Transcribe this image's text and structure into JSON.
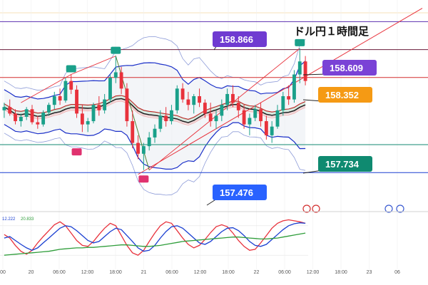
{
  "chart_data": {
    "type": "candlestick",
    "title": "ドル円１時間足",
    "time_labels": [
      "00",
      "20",
      "06:00",
      "12:00",
      "18:00",
      "21",
      "06:00",
      "12:00",
      "18:00",
      "22",
      "06:00",
      "12:00",
      "18:00",
      "23",
      "06"
    ],
    "price_ylim": [
      157.15,
      159.0
    ],
    "levels": [
      {
        "label": "158.866",
        "value": 158.866,
        "color": "#7b3fd6",
        "bg": "#6f3bd1",
        "line": "#5b2fb0"
      },
      {
        "label": "158.609",
        "value": 158.609,
        "color": "#7b3fd6",
        "bg": "#7a42d6",
        "line": "#6a1b3a"
      },
      {
        "label": "158.352",
        "value": 158.352,
        "color": "#f39a1b",
        "bg": "#f59a14",
        "line": "#d32f2f"
      },
      {
        "label": "157.734",
        "value": 157.734,
        "color": "#138a72",
        "bg": "#0f8a70",
        "line": "#138a72"
      },
      {
        "label": "157.476",
        "value": 157.476,
        "color": "#2f6fe0",
        "bg": "#2962ff",
        "line": "#1a3fd1"
      }
    ],
    "up_color": "#1aa08a",
    "down_color": "#e8323c",
    "candles": [
      [
        158.05,
        158.12,
        157.98,
        158.08
      ],
      [
        158.08,
        158.15,
        158.0,
        158.02
      ],
      [
        158.02,
        158.06,
        157.92,
        157.95
      ],
      [
        157.95,
        158.02,
        157.9,
        157.99
      ],
      [
        157.99,
        158.08,
        157.96,
        158.06
      ],
      [
        158.06,
        158.1,
        157.92,
        157.94
      ],
      [
        157.94,
        158.0,
        157.88,
        157.92
      ],
      [
        157.92,
        158.05,
        157.9,
        158.03
      ],
      [
        158.03,
        158.12,
        158.0,
        158.1
      ],
      [
        158.1,
        158.22,
        158.06,
        158.18
      ],
      [
        158.18,
        158.25,
        158.1,
        158.14
      ],
      [
        158.14,
        158.35,
        158.12,
        158.32
      ],
      [
        158.32,
        158.38,
        158.2,
        158.24
      ],
      [
        158.24,
        158.28,
        157.98,
        158.02
      ],
      [
        158.02,
        158.1,
        157.85,
        157.92
      ],
      [
        157.92,
        157.98,
        157.85,
        157.95
      ],
      [
        157.95,
        158.12,
        157.93,
        158.1
      ],
      [
        158.1,
        158.18,
        158.0,
        158.05
      ],
      [
        158.05,
        158.2,
        158.02,
        158.15
      ],
      [
        158.15,
        158.38,
        158.12,
        158.35
      ],
      [
        158.35,
        158.55,
        158.3,
        158.4
      ],
      [
        158.4,
        158.45,
        158.2,
        158.25
      ],
      [
        158.25,
        158.3,
        157.9,
        157.95
      ],
      [
        157.95,
        158.05,
        157.7,
        157.75
      ],
      [
        157.75,
        157.82,
        157.6,
        157.65
      ],
      [
        157.65,
        157.75,
        157.5,
        157.72
      ],
      [
        157.72,
        157.85,
        157.68,
        157.8
      ],
      [
        157.8,
        157.92,
        157.75,
        157.88
      ],
      [
        157.88,
        158.05,
        157.85,
        158.0
      ],
      [
        158.0,
        158.08,
        157.9,
        157.95
      ],
      [
        157.95,
        158.1,
        157.92,
        158.05
      ],
      [
        158.05,
        158.28,
        158.02,
        158.25
      ],
      [
        158.25,
        158.3,
        158.12,
        158.15
      ],
      [
        158.15,
        158.22,
        158.05,
        158.1
      ],
      [
        158.1,
        158.2,
        158.02,
        158.18
      ],
      [
        158.18,
        158.25,
        158.08,
        158.12
      ],
      [
        158.12,
        158.15,
        157.98,
        158.02
      ],
      [
        158.02,
        158.12,
        157.9,
        157.95
      ],
      [
        157.95,
        158.05,
        157.88,
        158.0
      ],
      [
        158.0,
        158.15,
        157.95,
        158.1
      ],
      [
        158.1,
        158.25,
        158.05,
        158.2
      ],
      [
        158.2,
        158.28,
        158.08,
        158.12
      ],
      [
        158.12,
        158.18,
        157.98,
        158.05
      ],
      [
        158.05,
        158.1,
        157.88,
        157.92
      ],
      [
        157.92,
        158.02,
        157.82,
        157.98
      ],
      [
        157.98,
        158.1,
        157.95,
        158.06
      ],
      [
        158.06,
        158.12,
        157.9,
        157.95
      ],
      [
        157.95,
        158.0,
        157.78,
        157.82
      ],
      [
        157.82,
        157.95,
        157.75,
        157.9
      ],
      [
        157.9,
        158.1,
        157.88,
        158.05
      ],
      [
        158.05,
        158.22,
        158.0,
        158.18
      ],
      [
        158.18,
        158.28,
        158.1,
        158.15
      ],
      [
        158.15,
        158.42,
        158.12,
        158.38
      ],
      [
        158.38,
        158.62,
        158.3,
        158.5
      ],
      [
        158.5,
        158.55,
        158.28,
        158.32
      ]
    ],
    "oscillator": {
      "labels": [
        "12.222",
        "20.833"
      ],
      "series": [
        {
          "color": "#e8323c",
          "values": [
            62,
            55,
            40,
            28,
            22,
            30,
            45,
            58,
            70,
            82,
            88,
            80,
            65,
            50,
            40,
            38,
            48,
            62,
            75,
            85,
            80,
            60,
            40,
            25,
            20,
            30,
            48,
            65,
            80,
            88,
            85,
            70,
            55,
            42,
            35,
            40,
            52,
            66,
            78,
            82,
            78,
            65,
            50,
            38,
            30,
            32,
            45,
            60,
            75,
            85,
            90,
            92,
            90,
            88,
            85
          ]
        },
        {
          "color": "#1a3fd1",
          "values": [
            55,
            58,
            50,
            42,
            35,
            30,
            35,
            45,
            55,
            65,
            75,
            80,
            78,
            70,
            60,
            50,
            45,
            48,
            58,
            68,
            75,
            72,
            60,
            48,
            35,
            28,
            30,
            40,
            55,
            68,
            78,
            80,
            75,
            65,
            55,
            45,
            42,
            48,
            58,
            68,
            75,
            76,
            70,
            60,
            48,
            40,
            38,
            42,
            52,
            62,
            72,
            80,
            84,
            86,
            85
          ]
        },
        {
          "color": "#2e9d3a",
          "values": [
            20,
            21,
            22,
            23,
            24,
            25,
            26,
            27,
            28,
            30,
            32,
            33,
            34,
            35,
            35,
            36,
            36,
            37,
            38,
            39,
            40,
            41,
            41,
            40,
            39,
            38,
            38,
            39,
            40,
            42,
            44,
            46,
            48,
            49,
            50,
            51,
            52,
            53,
            54,
            55,
            56,
            57,
            57,
            56,
            55,
            54,
            53,
            53,
            54,
            55,
            57,
            59,
            61,
            63,
            65
          ]
        }
      ]
    }
  }
}
